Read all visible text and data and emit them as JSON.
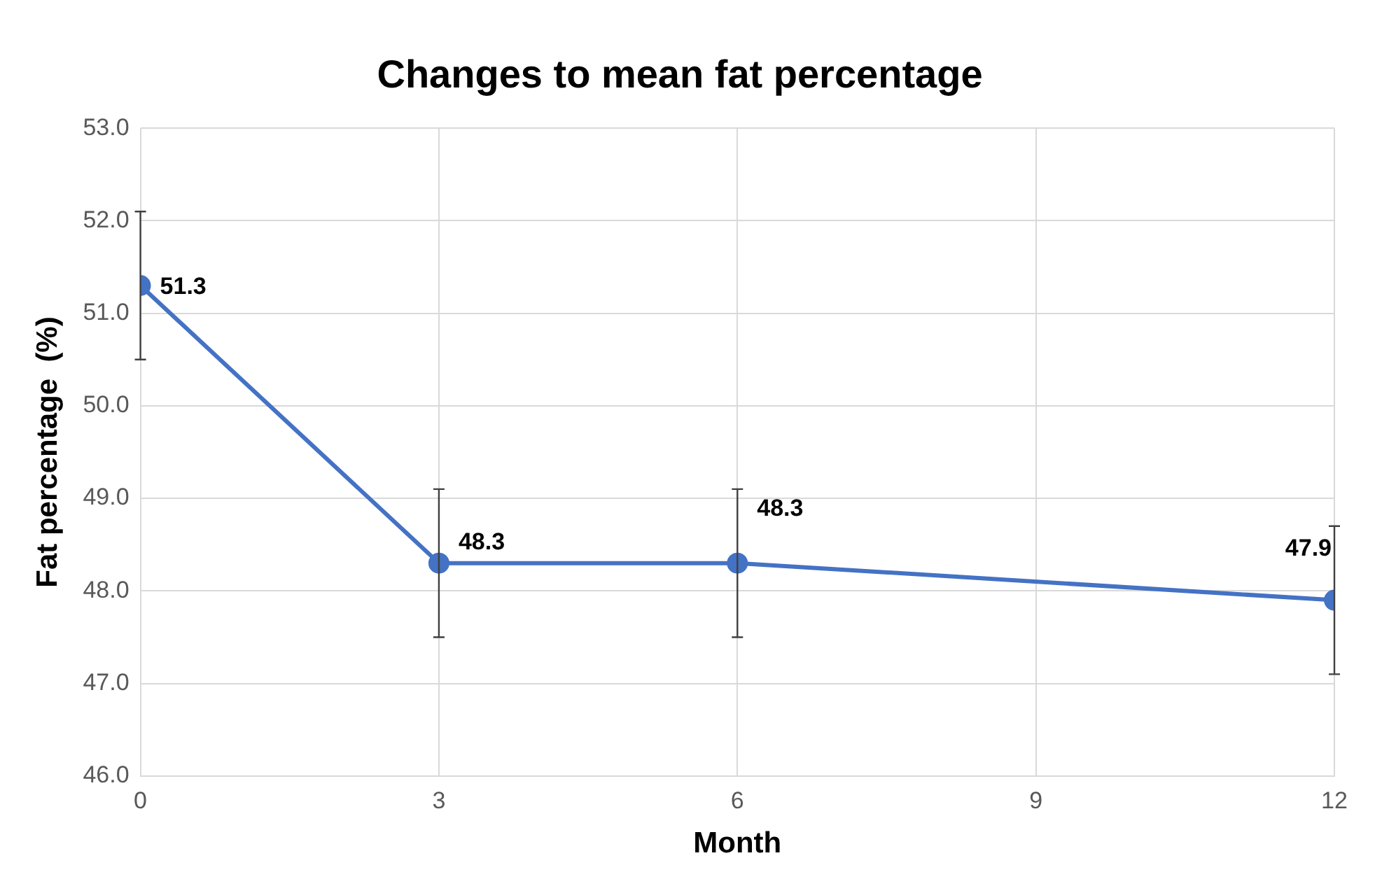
{
  "chart_data": {
    "type": "line",
    "title": "Changes to mean fat percentage",
    "xlabel": "Month",
    "ylabel": "Fat percentage  (%)",
    "x": [
      0,
      3,
      6,
      12
    ],
    "series": [
      {
        "color": "#4472c4",
        "values": [
          51.3,
          48.3,
          48.3,
          47.9
        ],
        "errors": [
          0.8,
          0.8,
          0.8,
          0.8
        ]
      }
    ],
    "xlim": [
      0,
      12
    ],
    "xticks": [
      0,
      3,
      6,
      9,
      12
    ],
    "ylim": [
      46,
      53
    ],
    "yticks": [
      {
        "value": 46,
        "label": "46.0"
      },
      {
        "value": 47,
        "label": "47.0"
      },
      {
        "value": 48,
        "label": "48.0"
      },
      {
        "value": 49,
        "label": "49.0"
      },
      {
        "value": 50,
        "label": "50.0"
      },
      {
        "value": 51,
        "label": "51.0"
      },
      {
        "value": 52,
        "label": "52.0"
      },
      {
        "value": 53,
        "label": "53.0"
      }
    ],
    "grid": true,
    "legend": false,
    "marker": "circle",
    "line_style": "solid",
    "data_labels": true
  }
}
